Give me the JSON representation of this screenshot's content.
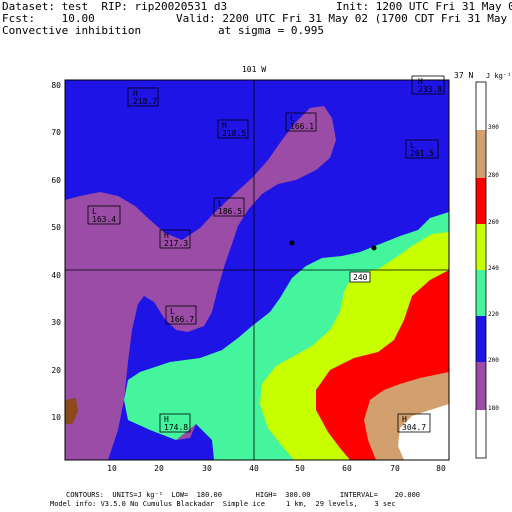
{
  "header": {
    "dataset": "Dataset: test  RIP: rip20020531 d3",
    "init": "Init: 1200 UTC Fri 31 May 02",
    "fcst": "Fcst:    10.00",
    "valid": "Valid: 2200 UTC Fri 31 May 02 (1700 CDT Fri 31 May 02)",
    "field": "Convective inhibition",
    "sigma": "at sigma = 0.995"
  },
  "map": {
    "top_label": "101 W",
    "right_label": "37 N",
    "x_ticks": [
      "10",
      "20",
      "30",
      "40",
      "50",
      "60",
      "70",
      "80"
    ],
    "y_ticks": [
      "10",
      "20",
      "30",
      "40",
      "50",
      "60",
      "70",
      "80"
    ],
    "labels": [
      {
        "text": "H",
        "value": "218.7"
      },
      {
        "text": "H",
        "value": "233.8"
      },
      {
        "text": "H",
        "value": "218.5"
      },
      {
        "text": "L",
        "value": "166.1"
      },
      {
        "text": "L",
        "value": "201.5"
      },
      {
        "text": "L",
        "value": "163.4"
      },
      {
        "text": "L",
        "value": "186.5"
      },
      {
        "text": "H",
        "value": "217.3"
      },
      {
        "text": "L",
        "value": "166.7"
      },
      {
        "text": "H",
        "value": "174.8"
      },
      {
        "text": "H",
        "value": "304.7"
      }
    ],
    "contour_label": "240"
  },
  "legend": {
    "unit": "J kg⁻¹",
    "levels": [
      "300",
      "280",
      "260",
      "240",
      "220",
      "200",
      "180"
    ],
    "colors": [
      "#ffffff",
      "#d2a06e",
      "#ff0000",
      "#c8ff00",
      "#44f59e",
      "#1e14e6",
      "#9a4ca6"
    ]
  },
  "footer": {
    "contours": "CONTOURS:  UNITS=J kg⁻¹  LOW=  180.00        HIGH=  300.00       INTERVAL=    20.000",
    "model": "Model info: V3.5.0 No Cumulus Blackadar  Simple ice     1 km,  29 levels,    3 sec"
  }
}
